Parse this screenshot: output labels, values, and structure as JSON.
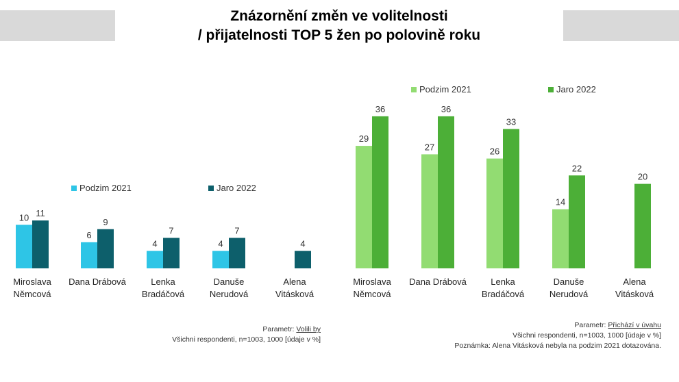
{
  "title": {
    "line1": "Znázornění změn ve volitelnosti",
    "line2": "/ přijatelnosti TOP 5 žen po polovině roku"
  },
  "colors": {
    "left_podzim": "#2ec5e6",
    "left_jaro": "#0d5f6b",
    "right_podzim": "#92dc72",
    "right_jaro": "#4caf37",
    "header_gray": "#d9d9d9"
  },
  "chart_data": [
    {
      "type": "bar",
      "categories": [
        "Miroslava\nNěmcová",
        "Dana Drábová",
        "Lenka\nBradáčová",
        "Danuše\nNerudová",
        "Alena\nVitásková"
      ],
      "series": [
        {
          "name": "Podzim 2021",
          "values": [
            10,
            6,
            4,
            4,
            null
          ]
        },
        {
          "name": "Jaro 2022",
          "values": [
            11,
            9,
            7,
            7,
            4
          ]
        }
      ],
      "legend_position": "top",
      "grid": false
    },
    {
      "type": "bar",
      "categories": [
        "Miroslava\nNěmcová",
        "Dana Drábová",
        "Lenka\nBradáčová",
        "Danuše\nNerudová",
        "Alena\nVitásková"
      ],
      "series": [
        {
          "name": "Podzim 2021",
          "values": [
            29,
            27,
            26,
            14,
            null
          ]
        },
        {
          "name": "Jaro 2022",
          "values": [
            36,
            36,
            33,
            22,
            20
          ]
        }
      ],
      "legend_position": "top",
      "grid": false
    }
  ],
  "notes": {
    "left": {
      "param_prefix": "Parametr: ",
      "param_value": "Volili by",
      "line2": "Všichni respondenti,  n=1003, 1000 [údaje v %]"
    },
    "right": {
      "param_prefix": "Parametr: ",
      "param_value": "Přichází v úvahu",
      "line2": "Všichni respondenti,  n=1003, 1000 [údaje v %]",
      "line3": "Poznámka: Alena Vitásková nebyla na podzim  2021 dotazována."
    }
  }
}
